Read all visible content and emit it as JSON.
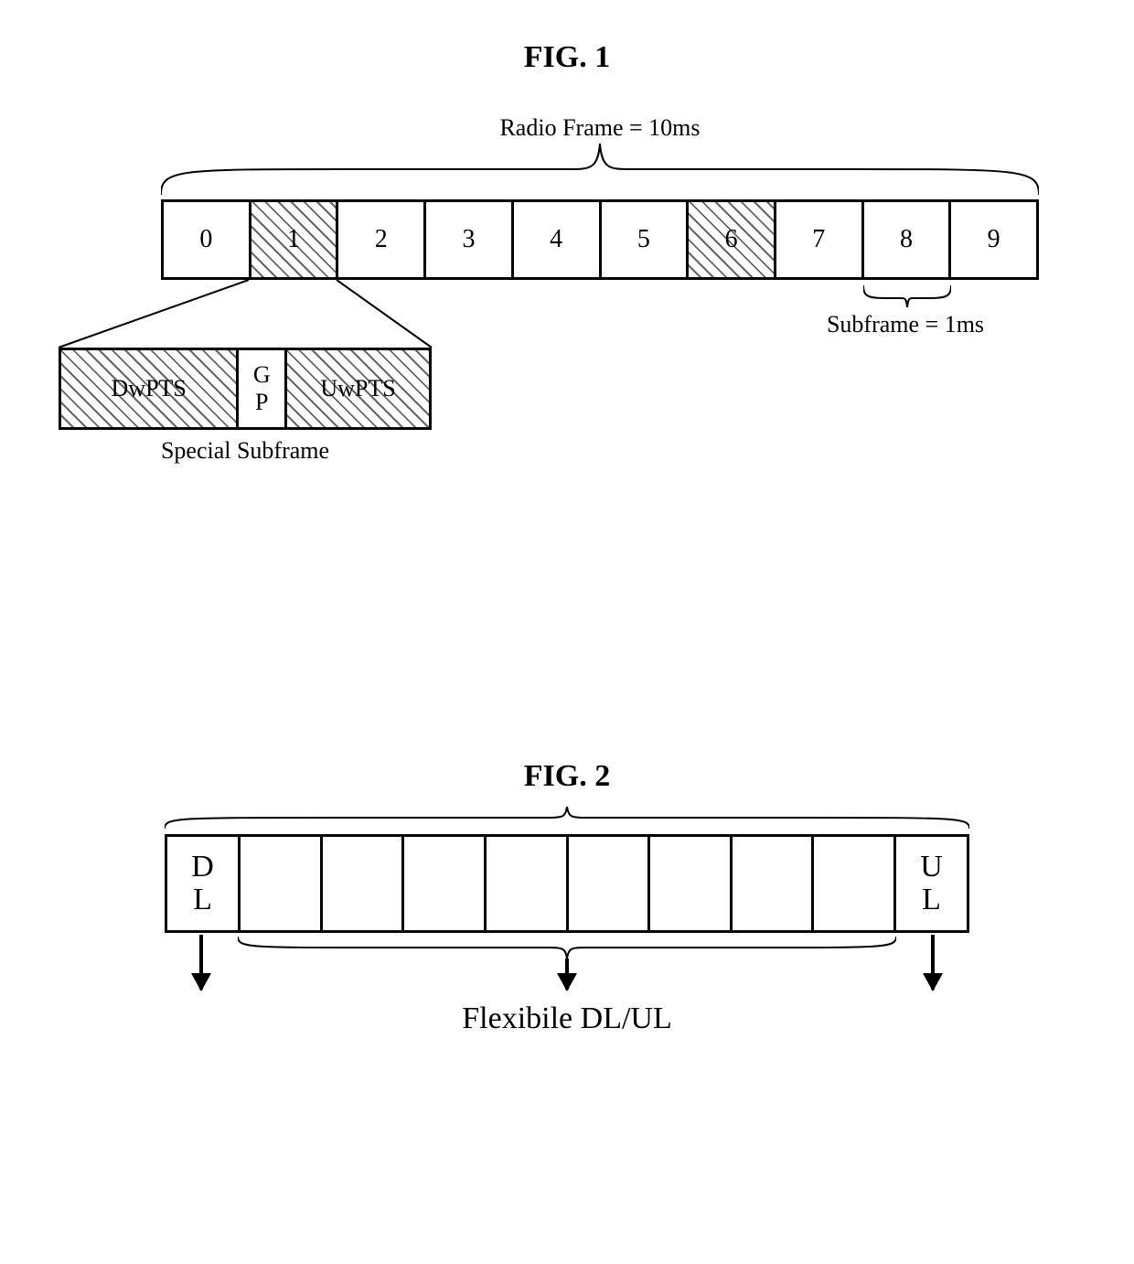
{
  "fig1": {
    "title": "FIG. 1",
    "title_fontsize": 34,
    "radio_frame_label": "Radio Frame = 10ms",
    "radio_frame_label_fontsize": 26,
    "subframes": [
      "0",
      "1",
      "2",
      "3",
      "4",
      "5",
      "6",
      "7",
      "8",
      "9"
    ],
    "subframe_fontsize": 28,
    "hatched_indices": [
      1,
      6
    ],
    "special": {
      "cells": [
        "DwPTS",
        "G\nP",
        "UwPTS"
      ],
      "label": "Special Subframe",
      "label_fontsize": 26,
      "cell_fontsize": 26
    },
    "subframe_label": "Subframe = 1ms",
    "subframe_label_fontsize": 26,
    "colors": {
      "border": "#000000",
      "background": "#ffffff",
      "hatch": "#666666"
    }
  },
  "fig2": {
    "title": "FIG. 2",
    "title_fontsize": 34,
    "first_cell": "D\nL",
    "last_cell": "U\nL",
    "cell_fontsize": 34,
    "middle_count": 8,
    "flexible_label": "Flexibile DL/UL",
    "flexible_label_fontsize": 34,
    "colors": {
      "border": "#000000",
      "arrow": "#000000"
    }
  }
}
